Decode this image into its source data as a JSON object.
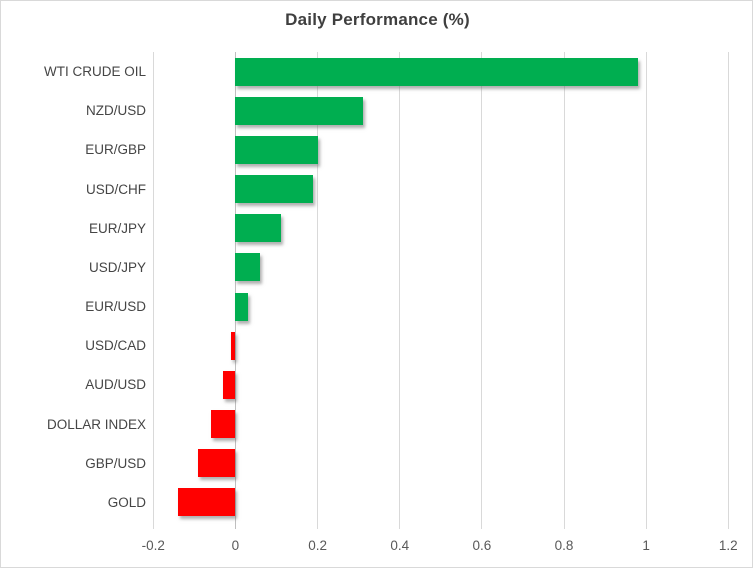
{
  "chart_data": {
    "type": "bar",
    "orientation": "horizontal",
    "title": "Daily Performance (%)",
    "categories": [
      "WTI CRUDE OIL",
      "NZD/USD",
      "EUR/GBP",
      "USD/CHF",
      "EUR/JPY",
      "USD/JPY",
      "EUR/USD",
      "USD/CAD",
      "AUD/USD",
      "DOLLAR INDEX",
      "GBP/USD",
      "GOLD"
    ],
    "values": [
      0.98,
      0.31,
      0.2,
      0.19,
      0.11,
      0.06,
      0.03,
      -0.01,
      -0.03,
      -0.06,
      -0.09,
      -0.14
    ],
    "xlim": [
      -0.2,
      1.2
    ],
    "x_ticks": [
      -0.2,
      0,
      0.2,
      0.4,
      0.6,
      0.8,
      1,
      1.2
    ],
    "x_tick_labels": [
      "-0.2",
      "0",
      "0.2",
      "0.4",
      "0.6",
      "0.8",
      "1",
      "1.2"
    ],
    "grid": true,
    "legend": "none",
    "colors": {
      "positive": "#00ae50",
      "negative": "#ff0000",
      "gridline": "#d9d9d9",
      "axis_line": "#bfbfbf",
      "title": "#3f3f3f",
      "category_label": "#454545",
      "tick_label": "#595959",
      "background": "#ffffff",
      "border": "#d9d9d9"
    }
  }
}
